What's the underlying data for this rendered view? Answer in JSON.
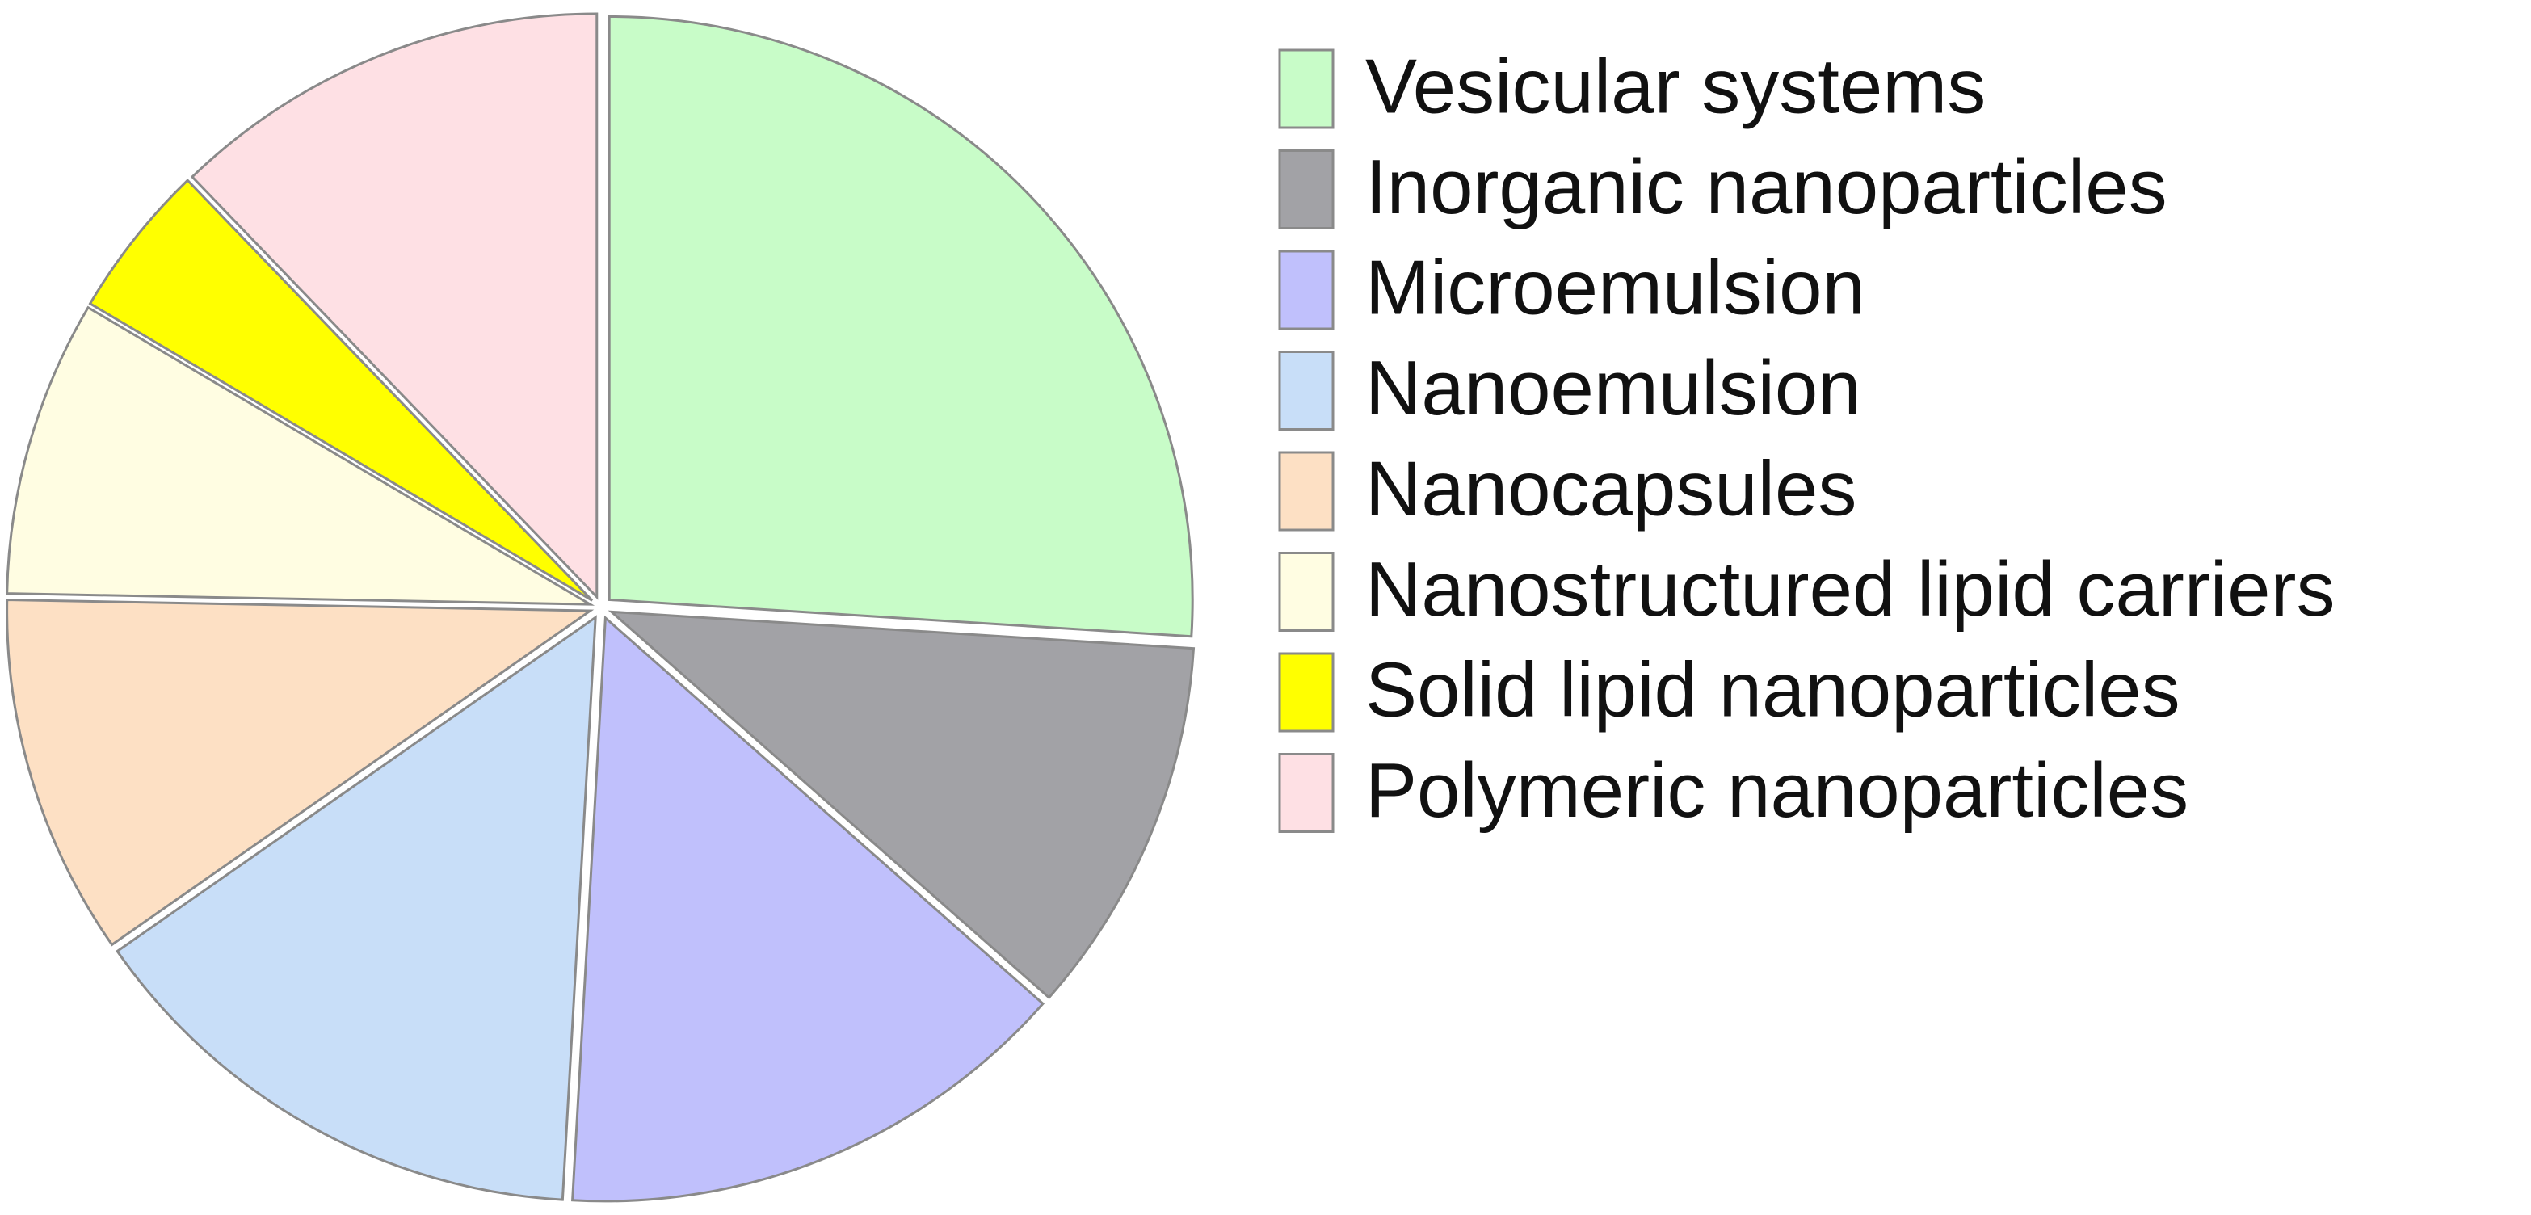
{
  "chart_data": {
    "type": "pie",
    "categories": [
      "Vesicular systems",
      "Inorganic nanoparticles",
      "Microemulsion",
      "Nanoemulsion",
      "Nanocapsules",
      "Nanostructured lipid carriers",
      "Solid lipid nanoparticles",
      "Polymeric nanoparticles"
    ],
    "values": [
      26,
      10.5,
      14.4,
      14.4,
      10,
      8.2,
      4.3,
      12.2
    ],
    "colors": [
      "#c8fcc8",
      "#a2a2a6",
      "#c0c0fc",
      "#c8def8",
      "#fde0c4",
      "#fffde2",
      "#ffff00",
      "#fee0e4"
    ],
    "legend": "right"
  }
}
